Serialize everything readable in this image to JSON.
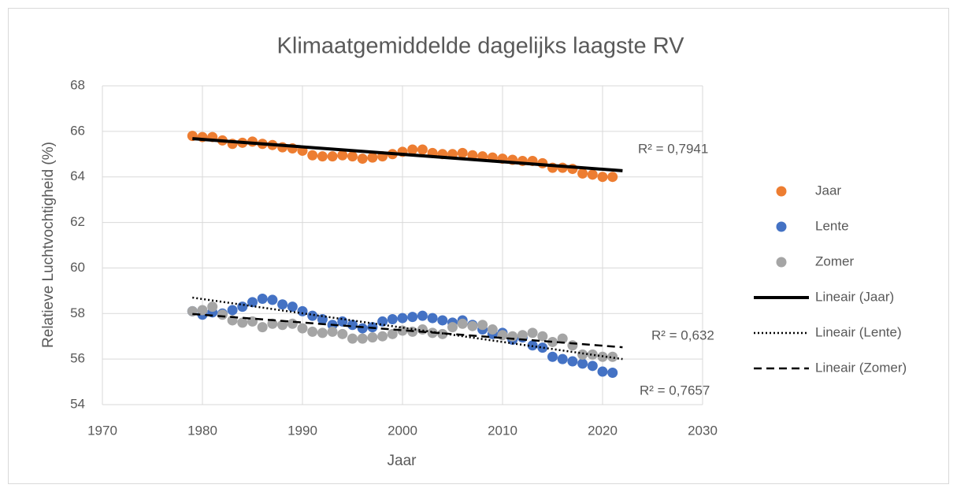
{
  "chart_data": {
    "type": "scatter",
    "title": "Klimaatgemiddelde dagelijks laagste RV",
    "x_label": "Jaar",
    "y_label": "Relatieve Luchtvochtigheid (%)",
    "xlim": [
      1970,
      2030
    ],
    "xticks": [
      1970,
      1980,
      1990,
      2000,
      2010,
      2020,
      2030
    ],
    "ylim": [
      54,
      68
    ],
    "yticks": [
      54,
      56,
      58,
      60,
      62,
      64,
      66,
      68
    ],
    "grid": true,
    "legend": "right",
    "x": [
      1979,
      1980,
      1981,
      1982,
      1983,
      1984,
      1985,
      1986,
      1987,
      1988,
      1989,
      1990,
      1991,
      1992,
      1993,
      1994,
      1995,
      1996,
      1997,
      1998,
      1999,
      2000,
      2001,
      2002,
      2003,
      2004,
      2005,
      2006,
      2007,
      2008,
      2009,
      2010,
      2011,
      2012,
      2013,
      2014,
      2015,
      2016,
      2017,
      2018,
      2019,
      2020,
      2021
    ],
    "series": [
      {
        "name": "Jaar",
        "color": "#ed7d31",
        "values": [
          65.8,
          65.75,
          65.75,
          65.6,
          65.45,
          65.5,
          65.55,
          65.45,
          65.4,
          65.3,
          65.25,
          65.15,
          64.95,
          64.9,
          64.9,
          64.95,
          64.9,
          64.8,
          64.85,
          64.9,
          65.0,
          65.1,
          65.2,
          65.2,
          65.05,
          65.0,
          65.0,
          65.05,
          64.95,
          64.9,
          64.85,
          64.8,
          64.75,
          64.7,
          64.7,
          64.6,
          64.4,
          64.4,
          64.35,
          64.15,
          64.1,
          64.0,
          64.0
        ]
      },
      {
        "name": "Lente",
        "color": "#4472c4",
        "values": [
          58.1,
          57.95,
          58.05,
          58.0,
          58.15,
          58.3,
          58.5,
          58.65,
          58.6,
          58.4,
          58.3,
          58.1,
          57.9,
          57.75,
          57.5,
          57.65,
          57.5,
          57.35,
          57.4,
          57.65,
          57.75,
          57.8,
          57.85,
          57.9,
          57.8,
          57.7,
          57.6,
          57.7,
          57.5,
          57.3,
          57.1,
          57.15,
          56.85,
          56.95,
          56.6,
          56.5,
          56.1,
          56.0,
          55.9,
          55.8,
          55.7,
          55.45,
          55.4
        ]
      },
      {
        "name": "Zomer",
        "color": "#a5a5a5",
        "values": [
          58.1,
          58.15,
          58.3,
          57.95,
          57.7,
          57.6,
          57.65,
          57.4,
          57.55,
          57.5,
          57.55,
          57.35,
          57.2,
          57.15,
          57.2,
          57.1,
          56.9,
          56.9,
          56.95,
          57.0,
          57.1,
          57.25,
          57.2,
          57.3,
          57.15,
          57.1,
          57.4,
          57.55,
          57.45,
          57.5,
          57.3,
          57.05,
          57.0,
          57.05,
          57.15,
          57.0,
          56.75,
          56.9,
          56.6,
          56.2,
          56.2,
          56.1,
          56.1
        ]
      }
    ],
    "trendlines": [
      {
        "name": "Lineair (Jaar)",
        "style": "solid",
        "color": "#000000",
        "x": [
          1979,
          2022
        ],
        "values": [
          65.68,
          64.27
        ],
        "label": "R² = 0,7941"
      },
      {
        "name": "Lineair (Lente)",
        "style": "dotted",
        "color": "#000000",
        "x": [
          1979,
          2022
        ],
        "values": [
          58.7,
          56.0
        ],
        "label": "R² = 0,632"
      },
      {
        "name": "Lineair (Zomer)",
        "style": "dashed",
        "color": "#000000",
        "x": [
          1979,
          2022
        ],
        "values": [
          57.98,
          56.52
        ],
        "label": "R² = 0,7657"
      }
    ]
  }
}
